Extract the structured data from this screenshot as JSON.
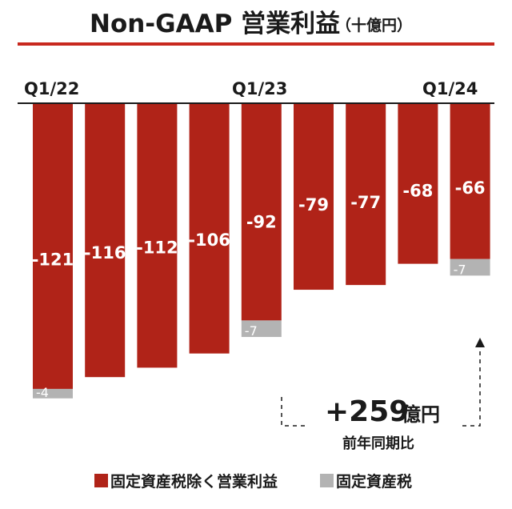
{
  "chart_data": {
    "type": "bar",
    "title": "Non-GAAP 営業利益",
    "title_unit": "（十億円）",
    "period_labels": [
      "Q1/22",
      "Q1/23",
      "Q1/24"
    ],
    "categories": [
      "",
      "",
      "",
      "",
      "",
      "",
      "",
      "",
      ""
    ],
    "series": [
      {
        "name": "固定資産税除く営業利益",
        "color": "#b02318",
        "values": [
          -121,
          -116,
          -112,
          -106,
          -92,
          -79,
          -77,
          -68,
          -66
        ]
      },
      {
        "name": "固定資産税",
        "color": "#b3b3b3",
        "values": [
          -4,
          null,
          null,
          null,
          -7,
          null,
          null,
          null,
          -7
        ]
      }
    ],
    "ylim": [
      -130,
      0
    ],
    "accent_line_color": "#c8281e",
    "annotation": {
      "value": "+259",
      "unit": "億円",
      "sub": "前年同期比"
    }
  }
}
